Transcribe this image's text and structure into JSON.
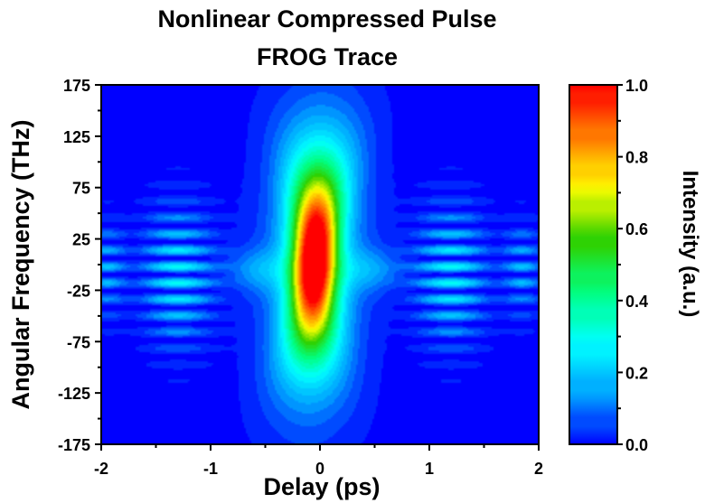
{
  "chart_data": {
    "type": "heatmap",
    "title_lines": [
      "Nonlinear Compressed Pulse",
      "FROG Trace"
    ],
    "xlabel": "Delay (ps)",
    "ylabel": "Angular Frequency (THz)",
    "xlim": [
      -2,
      2
    ],
    "ylim": [
      -175,
      175
    ],
    "xticks": [
      "-2",
      "-1",
      "0",
      "1",
      "2"
    ],
    "yticks": [
      "175",
      "125",
      "75",
      "25",
      "-25",
      "-75",
      "-125",
      "-175"
    ],
    "colorbar": {
      "label": "Intensity (a.u.)",
      "range": [
        0,
        1
      ],
      "ticks": [
        "1.0",
        "0.8",
        "0.6",
        "0.4",
        "0.2",
        "0.0"
      ],
      "colormap": [
        "#0000ff",
        "#00a0ff",
        "#00ffff",
        "#00ff80",
        "#30d000",
        "#ffff00",
        "#ff8000",
        "#ff0000"
      ]
    },
    "features": {
      "main_lobe": {
        "delay_ps": -0.05,
        "freq_center_THz": 5,
        "peak_intensity": 1.0
      },
      "inner_fringes": {
        "delay_ps": [
          -1.3,
          1.2
        ],
        "freq_span_THz": [
          -70,
          50
        ],
        "intensity": 0.3
      },
      "outer_fringes": {
        "delay_ps": [
          -1.95,
          1.85
        ],
        "freq_span_THz": [
          -50,
          40
        ],
        "intensity": 0.2
      }
    }
  }
}
